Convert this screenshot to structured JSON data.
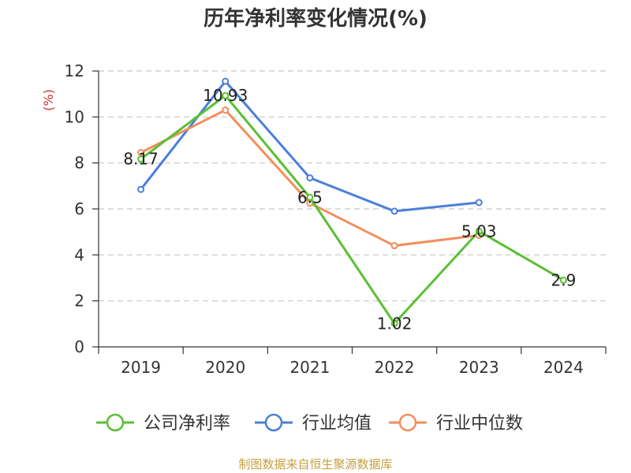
{
  "chart_data": {
    "type": "line",
    "title": "历年净利率变化情况(%)",
    "unit_label": "(%)",
    "categories": [
      "2019",
      "2020",
      "2021",
      "2022",
      "2023",
      "2024"
    ],
    "ylim": [
      0,
      12
    ],
    "yticks": [
      0,
      2,
      4,
      6,
      8,
      10,
      12
    ],
    "grid": true,
    "legend_position": "bottom",
    "series": [
      {
        "name": "公司净利率",
        "color": "#5ac034",
        "values": [
          8.17,
          10.93,
          6.5,
          1.02,
          5.03,
          2.9
        ],
        "labels": [
          "8.17",
          "10.93",
          "6.5",
          "1.02",
          "5.03",
          "2.9"
        ]
      },
      {
        "name": "行业均值",
        "color": "#4a7fdc",
        "values": [
          6.85,
          11.55,
          7.35,
          5.9,
          6.28,
          null
        ]
      },
      {
        "name": "行业中位数",
        "color": "#f28e5c",
        "values": [
          8.45,
          10.3,
          6.25,
          4.4,
          4.85,
          null
        ]
      }
    ]
  },
  "source_text": "制图数据来自恒生聚源数据库",
  "colors": {
    "source": "#c8a040",
    "unit": "#d0302a",
    "grid": "#c8c8c8",
    "axis": "#333333"
  }
}
